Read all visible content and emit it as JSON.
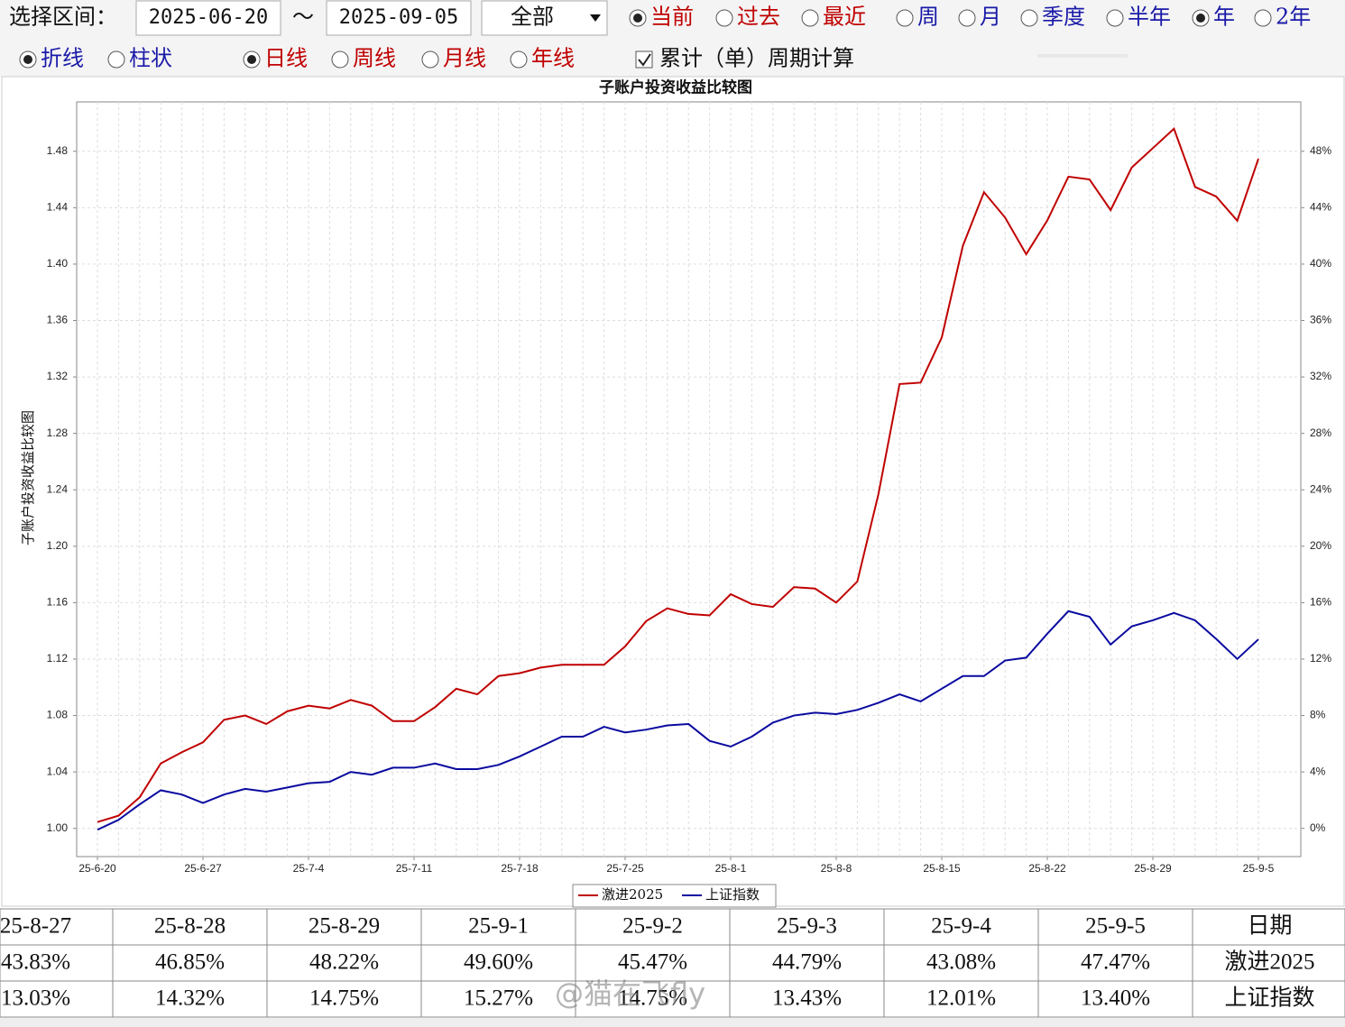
{
  "toolbar": {
    "range_label": "选择区间：",
    "start": "2025-06-20",
    "separator": "～",
    "end": "2025-09-05",
    "dropdown": "全部",
    "period_options": [
      {
        "label": "当前",
        "checked": true,
        "color": "#c00000"
      },
      {
        "label": "过去",
        "checked": false,
        "color": "#c00000"
      },
      {
        "label": "最近",
        "checked": false,
        "color": "#c00000"
      },
      {
        "label": "周",
        "checked": false,
        "color": "#1a1aa8"
      },
      {
        "label": "月",
        "checked": false,
        "color": "#1a1aa8"
      },
      {
        "label": "季度",
        "checked": false,
        "color": "#1a1aa8"
      },
      {
        "label": "半年",
        "checked": false,
        "color": "#1a1aa8"
      },
      {
        "label": "年",
        "checked": true,
        "color": "#1a1aa8"
      },
      {
        "label": "2年",
        "checked": false,
        "color": "#1a1aa8"
      }
    ],
    "style_options": [
      {
        "label": "折线",
        "checked": true,
        "color": "#1a1aa8"
      },
      {
        "label": "柱状",
        "checked": false,
        "color": "#1a1aa8"
      },
      {
        "label": "日线",
        "checked": true,
        "color": "#c00000"
      },
      {
        "label": "周线",
        "checked": false,
        "color": "#c00000"
      },
      {
        "label": "月线",
        "checked": false,
        "color": "#c00000"
      },
      {
        "label": "年线",
        "checked": false,
        "color": "#c00000"
      }
    ],
    "checkbox": {
      "label": "累计（单）周期计算",
      "checked": true
    }
  },
  "chart_data": {
    "type": "line",
    "title": "子账户投资收益比较图",
    "y_label": "子账户投资收益比较图",
    "categories": [
      "25-6-20",
      null,
      null,
      null,
      null,
      "25-6-27",
      null,
      null,
      null,
      null,
      "25-7-4",
      null,
      null,
      null,
      null,
      "25-7-11",
      null,
      null,
      null,
      null,
      "25-7-18",
      null,
      null,
      null,
      null,
      "25-7-25",
      null,
      null,
      null,
      null,
      "25-8-1",
      null,
      null,
      null,
      null,
      "25-8-8",
      null,
      null,
      null,
      null,
      "25-8-15",
      null,
      null,
      null,
      null,
      "25-8-22",
      null,
      null,
      null,
      null,
      "25-8-29",
      null,
      null,
      null,
      null,
      "25-9-5"
    ],
    "series": [
      {
        "name": "激进2025",
        "color": "#c00000",
        "values": [
          1.0045,
          1.009,
          1.022,
          1.046,
          1.054,
          1.061,
          1.077,
          1.08,
          1.074,
          1.083,
          1.087,
          1.085,
          1.091,
          1.087,
          1.076,
          1.076,
          1.086,
          1.099,
          1.095,
          1.108,
          1.11,
          1.114,
          1.116,
          1.116,
          1.116,
          1.129,
          1.147,
          1.156,
          1.152,
          1.151,
          1.166,
          1.159,
          1.157,
          1.171,
          1.17,
          1.16,
          1.175,
          1.237,
          1.315,
          1.316,
          1.348,
          1.413,
          1.451,
          1.433,
          1.407,
          1.431,
          1.462,
          1.46,
          1.4383,
          1.4685,
          1.4822,
          1.496,
          1.4547,
          1.4479,
          1.4308,
          1.4747
        ]
      },
      {
        "name": "上证指数",
        "color": "#0a0aa0",
        "values": [
          0.999,
          1.006,
          1.017,
          1.027,
          1.024,
          1.018,
          1.024,
          1.028,
          1.026,
          1.029,
          1.032,
          1.033,
          1.04,
          1.038,
          1.043,
          1.043,
          1.046,
          1.042,
          1.042,
          1.045,
          1.051,
          1.058,
          1.065,
          1.065,
          1.072,
          1.068,
          1.07,
          1.073,
          1.074,
          1.062,
          1.058,
          1.065,
          1.075,
          1.08,
          1.082,
          1.081,
          1.084,
          1.089,
          1.095,
          1.09,
          1.099,
          1.108,
          1.108,
          1.119,
          1.121,
          1.138,
          1.154,
          1.15,
          1.1303,
          1.1432,
          1.1475,
          1.1527,
          1.1475,
          1.1343,
          1.1201,
          1.134
        ]
      }
    ],
    "ylim": [
      0.98,
      1.515
    ],
    "yticks": [
      {
        "value": 1,
        "label": "1.00"
      },
      1.04,
      1.08,
      1.12,
      1.16,
      {
        "value": 1.2,
        "label": "1.20"
      },
      1.24,
      1.28,
      1.32,
      1.36,
      {
        "value": 1.4,
        "label": "1.40"
      },
      1.44,
      1.48
    ],
    "y2lim": [
      -2,
      51.5
    ],
    "y2ticks": [
      {
        "value": 0,
        "label": "0%"
      },
      {
        "value": 4,
        "label": "4%"
      },
      {
        "value": 8,
        "label": "8%"
      },
      {
        "value": 12,
        "label": "12%"
      },
      {
        "value": 16,
        "label": "16%"
      },
      {
        "value": 20,
        "label": "20%"
      },
      {
        "value": 24,
        "label": "24%"
      },
      {
        "value": 28,
        "label": "28%"
      },
      {
        "value": 32,
        "label": "32%"
      },
      {
        "value": 36,
        "label": "36%"
      },
      {
        "value": 40,
        "label": "40%"
      },
      {
        "value": 44,
        "label": "44%"
      },
      {
        "value": 48,
        "label": "48%"
      }
    ],
    "grid": true
  },
  "table": {
    "rows": [
      [
        "25-8-27",
        "25-8-28",
        "25-8-29",
        "25-9-1",
        "25-9-2",
        "25-9-3",
        "25-9-4",
        "25-9-5",
        "日期"
      ],
      [
        "43.83%",
        "46.85%",
        "48.22%",
        "49.60%",
        "45.47%",
        "44.79%",
        "43.08%",
        "47.47%",
        "激进2025"
      ],
      [
        "13.03%",
        "14.32%",
        "14.75%",
        "15.27%",
        "14.75%",
        "13.43%",
        "12.01%",
        "13.40%",
        "上证指数"
      ]
    ]
  },
  "watermark": "@猫在飞fly"
}
